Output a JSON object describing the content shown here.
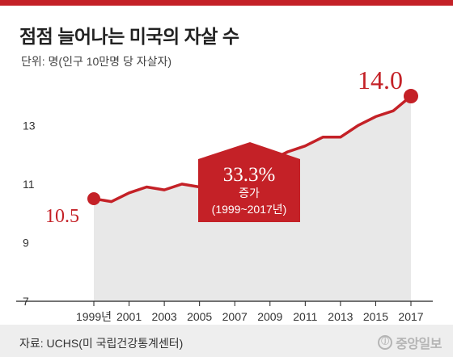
{
  "colors": {
    "accent": "#c42127",
    "fill": "#e8e8e8",
    "text": "#222222",
    "footer_bg": "#eeeeee"
  },
  "header": {
    "title": "점점 늘어나는 미국의 자살 수",
    "unit": "단위: 명(인구 10만명 당 자살자)"
  },
  "callout": {
    "percent": "33.3%",
    "label": "증가",
    "period": "(1999~2017년)"
  },
  "footer": {
    "source": "자료: UCHS(미 국립건강통계센터)",
    "logo_mark": "ⓙ",
    "logo_text": "중앙일보"
  },
  "chart_data": {
    "type": "area",
    "title": "점점 늘어나는 미국의 자살 수",
    "ylabel": "단위: 명(인구 10만명 당 자살자)",
    "x": [
      1999,
      2000,
      2001,
      2002,
      2003,
      2004,
      2005,
      2006,
      2007,
      2008,
      2009,
      2010,
      2011,
      2012,
      2013,
      2014,
      2015,
      2016,
      2017
    ],
    "values": [
      10.5,
      10.4,
      10.7,
      10.9,
      10.8,
      11.0,
      10.9,
      11.0,
      11.3,
      11.6,
      11.8,
      12.1,
      12.3,
      12.6,
      12.6,
      13.0,
      13.3,
      13.5,
      14.0
    ],
    "x_tick_labels": [
      "1999년",
      "2001",
      "2003",
      "2005",
      "2007",
      "2009",
      "2011",
      "2013",
      "2015",
      "2017"
    ],
    "y_ticks": [
      7,
      9,
      11,
      13
    ],
    "ylim": [
      7,
      14.8
    ],
    "start_label": "10.5",
    "end_label": "14.0",
    "grid": false
  }
}
